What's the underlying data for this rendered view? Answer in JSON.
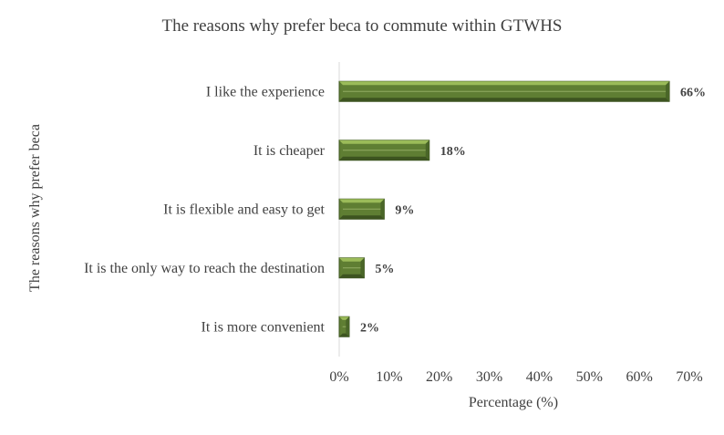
{
  "chart_data": {
    "type": "bar",
    "orientation": "horizontal",
    "title": "The reasons why prefer beca to commute within GTWHS",
    "xlabel": "Percentage  (%)",
    "ylabel": "The reasons why prefer beca",
    "categories": [
      "I like the experience",
      "It is cheaper",
      "It is flexible and easy to get",
      "It is the only way to reach the destination",
      "It is more convenient"
    ],
    "values": [
      66,
      18,
      9,
      5,
      2
    ],
    "data_labels": [
      "66%",
      "18%",
      "9%",
      "5%",
      "2%"
    ],
    "xlim": [
      0,
      70
    ],
    "x_ticks": [
      0,
      10,
      20,
      30,
      40,
      50,
      60,
      70
    ],
    "x_tick_labels": [
      "0%",
      "10%",
      "20%",
      "30%",
      "40%",
      "50%",
      "60%",
      "70%"
    ],
    "grid": false,
    "legend": "none",
    "bar_color": "#5f7e33",
    "bar_highlight": "#9bbb59",
    "bar_shadow": "#3d5420"
  }
}
